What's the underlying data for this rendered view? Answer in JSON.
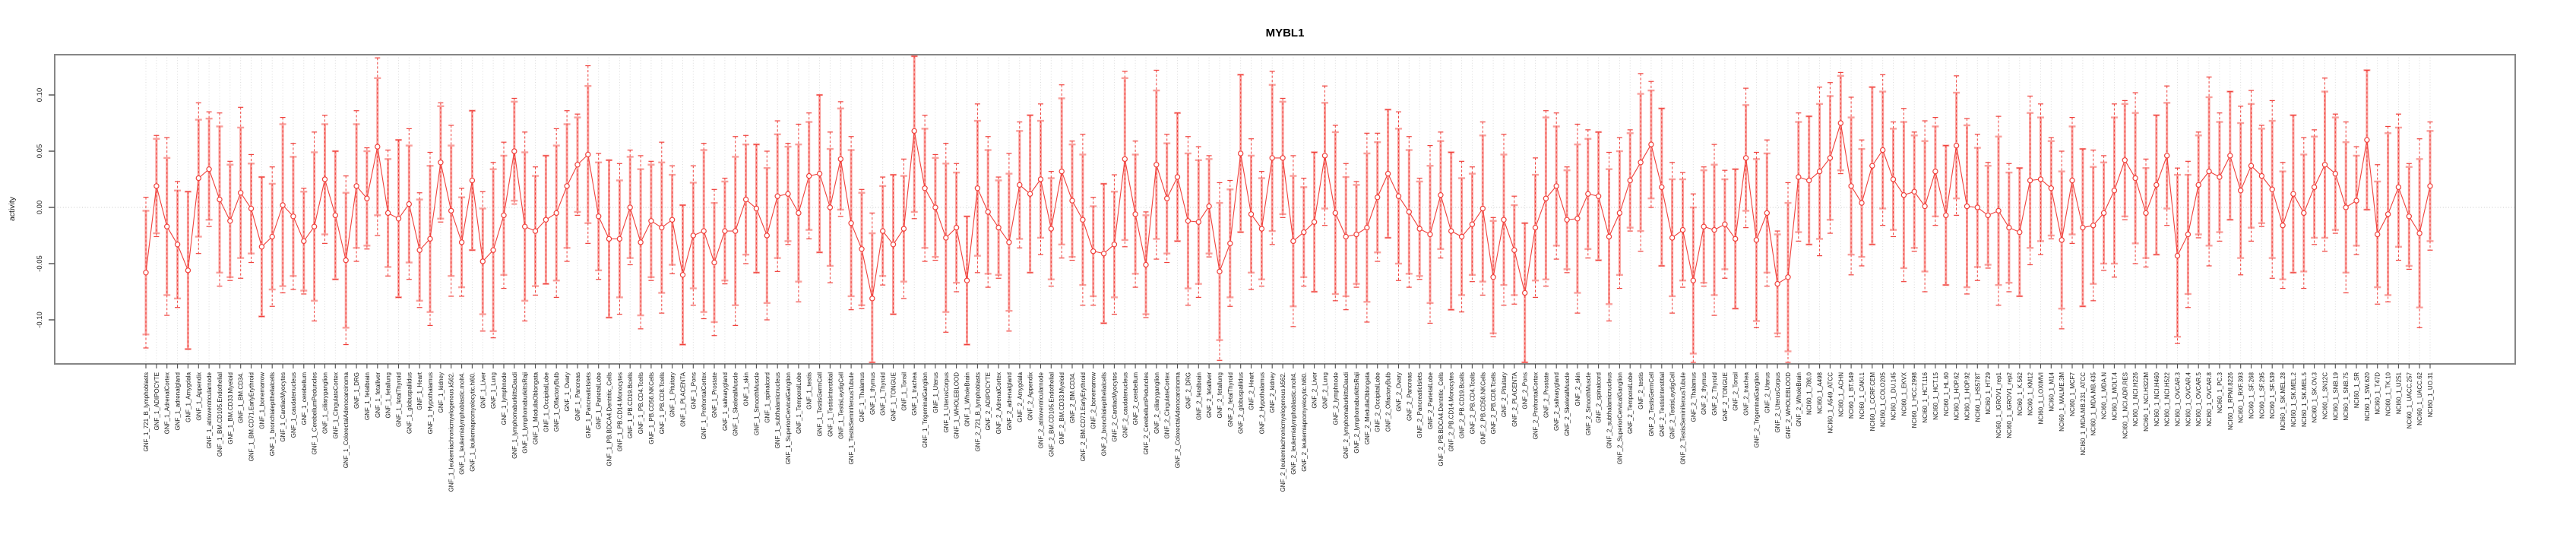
{
  "chart_data": {
    "type": "line",
    "subtype": "points-with-error-bars",
    "title": "MYBL1",
    "ylabel": "activity",
    "xlabel": "",
    "legend_position": "none",
    "grid": "dotted vertical gridline per category; dotted horizontal line at y=0",
    "ylim": [
      -0.142,
      0.136
    ],
    "yticks": {
      "values": [
        0.1,
        0.05,
        0.0,
        -0.05,
        -0.1
      ],
      "labels": [
        "0.10",
        "0.05",
        "0.00",
        "-0.05",
        "-0.10"
      ]
    },
    "colors": {
      "series": "#f0413c",
      "error_bar_band": "#f9a09c",
      "grid": "#d8d8d8",
      "zero_line": "#c8c8c8",
      "box": "#868686",
      "title": "#000000",
      "tick_text": "#262626"
    },
    "categories": [
      "GNF_1_721_B_lymphoblasts",
      "GNF_1_ADIPOCYTE",
      "GNF_1_AdrenalCortex",
      "GNF_1_adrenalgland",
      "GNF_1_Amygdala",
      "GNF_1_Appendix",
      "GNF_1_atrioventricularnode",
      "GNF_1_BM.CD105.Endothelial",
      "GNF_1_BM.CD33.Myeloid",
      "GNF_1_BM.CD34.",
      "GNF_1_BM.CD71.EarlyErythroid",
      "GNF_1_bonemarrow",
      "GNF_1_bronchialepithelialcells",
      "GNF_1_CardiacMyocytes",
      "GNF_1_caudatenucleus",
      "GNF_1_cerebellum",
      "GNF_1_CerebellumPeduncles",
      "GNF_1_ciliaryganglion",
      "GNF_1_CingulateCortex",
      "GNF_1_ColorectalAdenocarcinoma",
      "GNF_1_DRG",
      "GNF_1_fetalbrain",
      "GNF_1_fetalliver",
      "GNF_1_fetallung",
      "GNF_1_fetalThyroid",
      "GNF_1_globuspallidus",
      "GNF_1_Heart",
      "GNF_1_Hypothalamus",
      "GNF_1_kidney",
      "GNF_1_leukemiachronicmyelogenous.k562.",
      "GNF_1_leukemialymphoblastic.molt4.",
      "GNF_1_leukemiapromyelocytic.hl60.",
      "GNF_1_Liver",
      "GNF_1_Lung",
      "GNF_1_lymphnode",
      "GNF_1_lymphomaburkittsDaudi",
      "GNF_1_lymphomaburkittsRaji",
      "GNF_1_MedullaOblongata",
      "GNF_1_OccipitalLobe",
      "GNF_1_OlfactoryBulb",
      "GNF_1_Ovary",
      "GNF_1_Pancreas",
      "GNF_1_PancreaticIslets",
      "GNF_1_ParietalLobe",
      "GNF_1_PB.BDCA4.Dentritic_Cells",
      "GNF_1_PB.CD14.Monocytes",
      "GNF_1_PB.CD19.Bcells",
      "GNF_1_PB.CD4.Tcells",
      "GNF_1_PB.CD56.NKCells",
      "GNF_1_PB.CD8.Tcells",
      "GNF_1_Pituitary",
      "GNF_1_PLACENTA",
      "GNF_1_Pons",
      "GNF_1_PrefrontalCortex",
      "GNF_1_Prostate",
      "GNF_1_salivarygland",
      "GNF_1_SkeletalMuscle",
      "GNF_1_skin",
      "GNF_1_SmoothMuscle",
      "GNF_1_spinalcord",
      "GNF_1_subthalamicnucleus",
      "GNF_1_SuperiorCervicalGanglion",
      "GNF_1_TemporalLobe",
      "GNF_1_testis",
      "GNF_1_TestisGermCell",
      "GNF_1_TestisInterstitial",
      "GNF_1_TestisLeydigCell",
      "GNF_1_TestisSeminiferousTubule",
      "GNF_1_Thalamus",
      "GNF_1_thymus",
      "GNF_1_Thyroid",
      "GNF_1_TONGUE",
      "GNF_1_Tonsil",
      "GNF_1_trachea",
      "GNF_1_TrigeminalGanglion",
      "GNF_1_Uterus",
      "GNF_1_UterusCorpus",
      "GNF_1_WHOLEBLOOD",
      "GNF_1_WholeBrain",
      "GNF_2_721_B_lymphoblasts",
      "GNF_2_ADIPOCYTE",
      "GNF_2_AdrenalCortex",
      "GNF_2_adrenalgland",
      "GNF_2_Amygdala",
      "GNF_2_Appendix",
      "GNF_2_atrioventricularnode",
      "GNF_2_BM.CD105.Endothelial",
      "GNF_2_BM.CD33.Myeloid",
      "GNF_2_BM.CD34.",
      "GNF_2_BM.CD71.EarlyErythroid",
      "GNF_2_bonemarrow",
      "GNF_2_bronchialepithelialcells",
      "GNF_2_CardiacMyocytes",
      "GNF_2_caudatenucleus",
      "GNF_2_cerebellum",
      "GNF_2_CerebellumPeduncles",
      "GNF_2_ciliaryganglion",
      "GNF_2_CingulateCortex",
      "GNF_2_ColorectalAdenocarcinoma",
      "GNF_2_DRG",
      "GNF_2_fetalbrain",
      "GNF_2_fetalliver",
      "GNF_2_fetallung",
      "GNF_2_fetalThyroid",
      "GNF_2_globuspallidus",
      "GNF_2_Heart",
      "GNF_2_Hypothalamus",
      "GNF_2_kidney",
      "GNF_2_leukemiachronicmyelogenous.k562.",
      "GNF_2_leukemialymphoblastic.molt4.",
      "GNF_2_leukemiapromyelocytic.hl60.",
      "GNF_2_Liver",
      "GNF_2_Lung",
      "GNF_2_lymphnode",
      "GNF_2_lymphomaburkittsDaudi",
      "GNF_2_lymphomaburkittsRaji",
      "GNF_2_MedullaOblongata",
      "GNF_2_OccipitalLobe",
      "GNF_2_OlfactoryBulb",
      "GNF_2_Ovary",
      "GNF_2_Pancreas",
      "GNF_2_PancreaticIslets",
      "GNF_2_ParietalLobe",
      "GNF_2_PB.BDCA4.Dentritic_Cells",
      "GNF_2_PB.CD14.Monocytes",
      "GNF_2_PB.CD19.Bcells",
      "GNF_2_PB.CD4.Tcells",
      "GNF_2_PB.CD56.NKCells",
      "GNF_2_PB.CD8.Tcells",
      "GNF_2_Pituitary",
      "GNF_2_PLACENTA",
      "GNF_2_Pons",
      "GNF_2_PrefrontalCortex",
      "GNF_2_Prostate",
      "GNF_2_salivarygland",
      "GNF_2_SkeletalMuscle",
      "GNF_2_skin",
      "GNF_2_SmoothMuscle",
      "GNF_2_spinalcord",
      "GNF_2_subthalamicnucleus",
      "GNF_2_SuperiorCervicalGanglion",
      "GNF_2_TemporalLobe",
      "GNF_2_testis",
      "GNF_2_TestisGermCell",
      "GNF_2_TestisInterstitial",
      "GNF_2_TestisLeydigCell",
      "GNF_2_TestisSeminiferousTubule",
      "GNF_2_Thalamus",
      "GNF_2_thymus",
      "GNF_2_Thyroid",
      "GNF_2_TONGUE",
      "GNF_2_Tonsil",
      "GNF_2_trachea",
      "GNF_2_TrigeminalGanglion",
      "GNF_2_Uterus",
      "GNF_2_UterusCorpus",
      "GNF_2_WHOLEBLOOD",
      "GNF_2_WholeBrain",
      "NCI60_1_786.0",
      "NCI60_1_A498",
      "NCI60_1_A549_ATCC",
      "NCI60_1_ACHN",
      "NCI60_1_BT.549",
      "NCI60_1_CAKI.1",
      "NCI60_1_CCRF.CEM",
      "NCI60_1_COLO205",
      "NCI60_1_DU.145",
      "NCI60_1_EKVX",
      "NCI60_1_HCC.2998",
      "NCI60_1_HCT.116",
      "NCI60_1_HCT.15",
      "NCI60_1_HL.60",
      "NCI60_1_HOP.62",
      "NCI60_1_HOP.92",
      "NCI60_1_HS578T",
      "NCI60_1_HT29",
      "NCI60_1_IGROV1_rep1",
      "NCI60_1_IGROV1_rep2",
      "NCI60_1_K.562",
      "NCI60_1_KM12",
      "NCI60_1_LOXIMVI",
      "NCI60_1_M14",
      "NCI60_1_MALME.3M",
      "NCI60_1_MCF7",
      "NCI60_1_MDA.MB.231_ATCC",
      "NCI60_1_MDA.MB.435",
      "NCI60_1_MDA.N",
      "NCI60_1_MOLT.4",
      "NCI60_1_NCI.ADR.RES",
      "NCI60_1_NCI.H226",
      "NCI60_1_NCI.H322M",
      "NCI60_1_NCI.H460",
      "NCI60_1_NCI.H522",
      "NCI60_1_OVCAR.3",
      "NCI60_1_OVCAR.4",
      "NCI60_1_OVCAR.5",
      "NCI60_1_OVCAR.8",
      "NCI60_1_PC.3",
      "NCI60_1_RPMI.8226",
      "NCI60_1_RXF.393",
      "NCI60_1_SF.268",
      "NCI60_1_SF.295",
      "NCI60_1_SF.539",
      "NCI60_1_SK.MEL.28",
      "NCI60_1_SK.MEL.2",
      "NCI60_1_SK.MEL.5",
      "NCI60_1_SK.OV.3",
      "NCI60_1_SN12C",
      "NCI60_1_SNB.19",
      "NCI60_1_SNB.75",
      "NCI60_1_SR",
      "NCI60_1_SW.620",
      "NCI60_1_T47D",
      "NCI60_1_TK.10",
      "NCI60_1_U251",
      "NCI60_1_UACC.257",
      "NCI60_1_UACC.62",
      "NCI60_1_UO.31"
    ],
    "values": [
      -0.058,
      0.019,
      -0.017,
      -0.033,
      -0.056,
      0.026,
      0.034,
      0.007,
      -0.012,
      0.013,
      -0.001,
      -0.035,
      -0.026,
      0.002,
      -0.008,
      -0.03,
      -0.017,
      0.025,
      -0.007,
      -0.047,
      0.019,
      0.008,
      0.054,
      -0.005,
      -0.01,
      0.003,
      -0.038,
      -0.028,
      0.04,
      -0.003,
      -0.031,
      0.024,
      -0.048,
      -0.038,
      -0.007,
      0.05,
      -0.017,
      -0.021,
      -0.011,
      -0.005,
      0.019,
      0.038,
      0.047,
      -0.008,
      -0.028,
      -0.028,
      0.0,
      -0.031,
      -0.012,
      -0.018,
      -0.011,
      -0.06,
      -0.025,
      -0.021,
      -0.049,
      -0.021,
      -0.021,
      0.007,
      -0.001,
      -0.025,
      0.01,
      0.012,
      -0.005,
      0.028,
      0.03,
      0.0,
      0.043,
      -0.014,
      -0.037,
      -0.081,
      -0.021,
      -0.033,
      -0.019,
      0.068,
      0.017,
      0.0,
      -0.027,
      -0.018,
      -0.065,
      0.017,
      -0.004,
      -0.018,
      -0.031,
      0.02,
      0.012,
      0.025,
      -0.019,
      0.032,
      0.006,
      -0.011,
      -0.039,
      -0.041,
      -0.033,
      0.043,
      -0.006,
      -0.051,
      0.038,
      0.008,
      0.027,
      -0.012,
      -0.013,
      0.001,
      -0.057,
      -0.032,
      0.048,
      -0.006,
      -0.019,
      0.044,
      0.044,
      -0.03,
      -0.022,
      -0.013,
      0.046,
      -0.005,
      -0.026,
      -0.024,
      -0.018,
      0.009,
      0.03,
      0.01,
      -0.004,
      -0.019,
      -0.024,
      0.011,
      -0.021,
      -0.026,
      -0.015,
      -0.001,
      -0.062,
      -0.011,
      -0.038,
      -0.076,
      -0.018,
      0.008,
      0.019,
      -0.011,
      -0.01,
      0.012,
      0.01,
      -0.026,
      -0.005,
      0.024,
      0.04,
      0.056,
      0.018,
      -0.027,
      -0.02,
      -0.065,
      -0.017,
      -0.02,
      -0.015,
      -0.028,
      0.044,
      -0.029,
      -0.005,
      -0.068,
      -0.062,
      0.027,
      0.024,
      0.032,
      0.044,
      0.075,
      0.019,
      0.004,
      0.037,
      0.051,
      0.025,
      0.011,
      0.014,
      0.001,
      0.032,
      -0.007,
      0.055,
      0.001,
      0.0,
      -0.007,
      -0.003,
      -0.018,
      -0.022,
      0.024,
      0.025,
      0.017,
      -0.029,
      0.024,
      -0.018,
      -0.016,
      -0.005,
      0.015,
      0.042,
      0.026,
      -0.005,
      0.02,
      0.046,
      -0.043,
      -0.024,
      0.02,
      0.032,
      0.027,
      0.046,
      0.015,
      0.037,
      0.028,
      0.016,
      -0.016,
      0.012,
      -0.005,
      0.018,
      0.038,
      0.03,
      0.0,
      0.006,
      0.06,
      -0.024,
      -0.006,
      0.018,
      -0.008,
      -0.023,
      0.019
    ],
    "err_inner": [
      0.055,
      0.042,
      0.061,
      0.048,
      0.07,
      0.052,
      0.045,
      0.065,
      0.05,
      0.058,
      0.04,
      0.062,
      0.047,
      0.072,
      0.053,
      0.044,
      0.066,
      0.049,
      0.057,
      0.06,
      0.055,
      0.042,
      0.061,
      0.048,
      0.07,
      0.052,
      0.045,
      0.065,
      0.05,
      0.058,
      0.04,
      0.062,
      0.047,
      0.072,
      0.053,
      0.044,
      0.066,
      0.049,
      0.057,
      0.06,
      0.055,
      0.042,
      0.061,
      0.048,
      0.07,
      0.052,
      0.045,
      0.065,
      0.05,
      0.058,
      0.04,
      0.062,
      0.047,
      0.072,
      0.053,
      0.044,
      0.066,
      0.049,
      0.057,
      0.06,
      0.055,
      0.042,
      0.061,
      0.048,
      0.07,
      0.052,
      0.045,
      0.065,
      0.05,
      0.058,
      0.04,
      0.062,
      0.047,
      0.072,
      0.053,
      0.044,
      0.066,
      0.049,
      0.057,
      0.06,
      0.055,
      0.042,
      0.061,
      0.048,
      0.07,
      0.052,
      0.045,
      0.065,
      0.05,
      0.058,
      0.04,
      0.062,
      0.047,
      0.072,
      0.053,
      0.044,
      0.066,
      0.049,
      0.057,
      0.06,
      0.055,
      0.042,
      0.061,
      0.048,
      0.07,
      0.052,
      0.045,
      0.065,
      0.05,
      0.058,
      0.04,
      0.062,
      0.047,
      0.072,
      0.053,
      0.044,
      0.066,
      0.049,
      0.057,
      0.06,
      0.055,
      0.042,
      0.061,
      0.048,
      0.07,
      0.052,
      0.045,
      0.065,
      0.05,
      0.058,
      0.04,
      0.062,
      0.047,
      0.072,
      0.053,
      0.044,
      0.066,
      0.049,
      0.057,
      0.06,
      0.055,
      0.042,
      0.061,
      0.048,
      0.07,
      0.052,
      0.045,
      0.065,
      0.05,
      0.058,
      0.04,
      0.062,
      0.047,
      0.072,
      0.053,
      0.044,
      0.066,
      0.049,
      0.057,
      0.06,
      0.055,
      0.042,
      0.061,
      0.048,
      0.07,
      0.052,
      0.045,
      0.065,
      0.05,
      0.058,
      0.04,
      0.062,
      0.047,
      0.072,
      0.053,
      0.044,
      0.066,
      0.049,
      0.057,
      0.06,
      0.055,
      0.042,
      0.061,
      0.048,
      0.07,
      0.052,
      0.045,
      0.065,
      0.05,
      0.058,
      0.04,
      0.062,
      0.047,
      0.072,
      0.053,
      0.044,
      0.066,
      0.049,
      0.057,
      0.06,
      0.055,
      0.042,
      0.061,
      0.048,
      0.07,
      0.052,
      0.045,
      0.065,
      0.05,
      0.058,
      0.04,
      0.062,
      0.047,
      0.072,
      0.053,
      0.044,
      0.066,
      0.049
    ],
    "err_outer": [
      0.067,
      0.045,
      0.079,
      0.056,
      0.07,
      0.067,
      0.051,
      0.077,
      0.053,
      0.076,
      0.048,
      0.062,
      0.062,
      0.078,
      0.065,
      0.047,
      0.084,
      0.057,
      0.057,
      0.075,
      0.067,
      0.045,
      0.079,
      0.056,
      0.07,
      0.067,
      0.051,
      0.077,
      0.053,
      0.076,
      0.048,
      0.062,
      0.062,
      0.078,
      0.065,
      0.047,
      0.084,
      0.057,
      0.057,
      0.075,
      0.067,
      0.045,
      0.079,
      0.056,
      0.07,
      0.067,
      0.051,
      0.077,
      0.053,
      0.076,
      0.048,
      0.062,
      0.062,
      0.078,
      0.065,
      0.047,
      0.084,
      0.057,
      0.057,
      0.075,
      0.067,
      0.045,
      0.079,
      0.056,
      0.07,
      0.067,
      0.051,
      0.077,
      0.053,
      0.076,
      0.048,
      0.062,
      0.062,
      0.078,
      0.065,
      0.047,
      0.084,
      0.057,
      0.057,
      0.075,
      0.067,
      0.045,
      0.079,
      0.056,
      0.07,
      0.067,
      0.051,
      0.077,
      0.053,
      0.076,
      0.048,
      0.062,
      0.062,
      0.078,
      0.065,
      0.047,
      0.084,
      0.057,
      0.057,
      0.075,
      0.067,
      0.045,
      0.079,
      0.056,
      0.07,
      0.067,
      0.051,
      0.077,
      0.053,
      0.076,
      0.048,
      0.062,
      0.062,
      0.078,
      0.065,
      0.047,
      0.084,
      0.057,
      0.057,
      0.075,
      0.067,
      0.045,
      0.079,
      0.056,
      0.07,
      0.067,
      0.051,
      0.077,
      0.053,
      0.076,
      0.048,
      0.062,
      0.062,
      0.078,
      0.065,
      0.047,
      0.084,
      0.057,
      0.057,
      0.075,
      0.067,
      0.045,
      0.079,
      0.056,
      0.07,
      0.067,
      0.051,
      0.077,
      0.053,
      0.076,
      0.048,
      0.062,
      0.062,
      0.078,
      0.065,
      0.047,
      0.084,
      0.057,
      0.057,
      0.075,
      0.067,
      0.045,
      0.079,
      0.056,
      0.07,
      0.067,
      0.051,
      0.077,
      0.053,
      0.076,
      0.048,
      0.062,
      0.062,
      0.078,
      0.065,
      0.047,
      0.084,
      0.057,
      0.057,
      0.075,
      0.067,
      0.045,
      0.079,
      0.056,
      0.07,
      0.067,
      0.051,
      0.077,
      0.053,
      0.076,
      0.048,
      0.062,
      0.062,
      0.078,
      0.065,
      0.047,
      0.084,
      0.057,
      0.057,
      0.075,
      0.067,
      0.045,
      0.079,
      0.056,
      0.07,
      0.067,
      0.051,
      0.077,
      0.053,
      0.076,
      0.048,
      0.062,
      0.062,
      0.078,
      0.065,
      0.047,
      0.084,
      0.057
    ]
  }
}
